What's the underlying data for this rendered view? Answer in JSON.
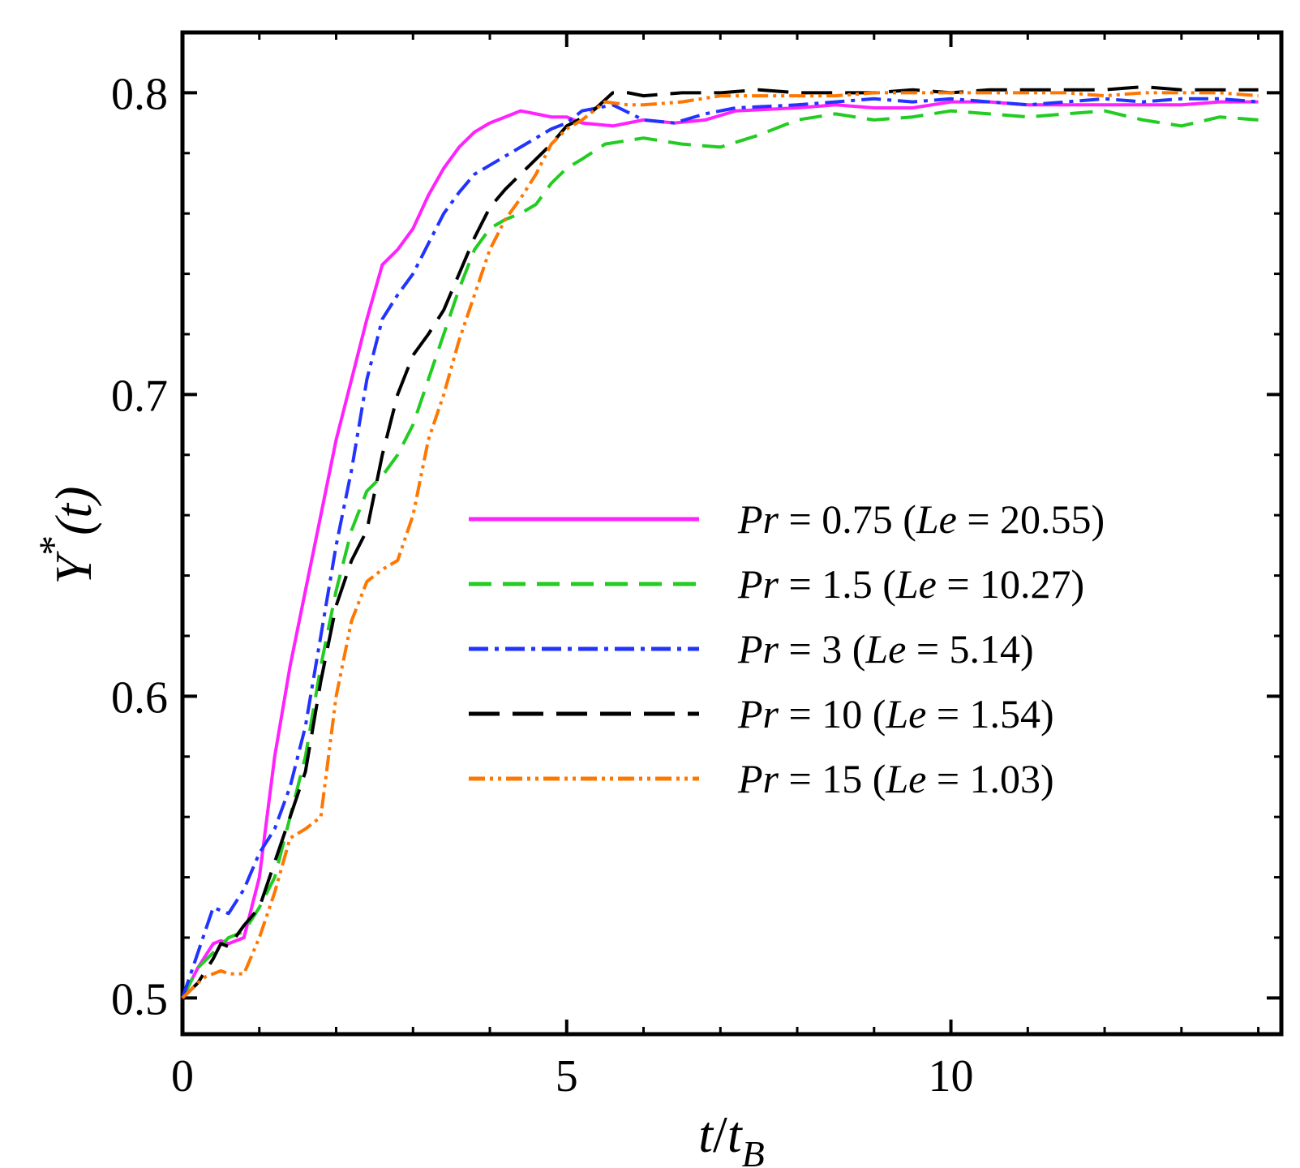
{
  "chart_data": {
    "type": "line",
    "title": "",
    "xlabel": {
      "italic_a": "t",
      "slash": "/",
      "italic_b": "t",
      "sub": "B"
    },
    "ylabel": {
      "italic": "Y",
      "sup": "*",
      "rest": "(t)"
    },
    "xlim": [
      0,
      14.3
    ],
    "ylim": [
      0.488,
      0.82
    ],
    "xticks": [
      0,
      5,
      10
    ],
    "xtick_labels": [
      "0",
      "5",
      "10"
    ],
    "yticks": [
      0.5,
      0.6,
      0.7,
      0.8
    ],
    "ytick_labels": [
      "0.5",
      "0.6",
      "0.7",
      "0.8"
    ],
    "legend_position": "center-right",
    "series": [
      {
        "name": "Pr = 0.75 (Le = 20.55)",
        "label_parts": [
          "Pr",
          " = 0.75 (",
          "Le",
          " = 20.55)"
        ],
        "color": "#ff22ff",
        "dash": "",
        "x": [
          0,
          0.2,
          0.4,
          0.5,
          0.6,
          0.8,
          1.0,
          1.2,
          1.4,
          1.6,
          1.8,
          2.0,
          2.2,
          2.4,
          2.6,
          2.8,
          3.0,
          3.2,
          3.4,
          3.6,
          3.8,
          4.0,
          4.2,
          4.4,
          4.6,
          4.8,
          5.0,
          5.2,
          5.6,
          6.0,
          6.4,
          6.8,
          7.2,
          8.0,
          8.5,
          9.0,
          9.5,
          10.0,
          10.5,
          11.0,
          11.5,
          12.0,
          12.5,
          13.0,
          13.5,
          14.0
        ],
        "y": [
          0.5,
          0.51,
          0.518,
          0.519,
          0.518,
          0.52,
          0.54,
          0.58,
          0.61,
          0.635,
          0.66,
          0.685,
          0.705,
          0.725,
          0.743,
          0.748,
          0.755,
          0.766,
          0.775,
          0.782,
          0.787,
          0.79,
          0.792,
          0.794,
          0.793,
          0.792,
          0.792,
          0.79,
          0.789,
          0.791,
          0.79,
          0.791,
          0.794,
          0.795,
          0.796,
          0.795,
          0.795,
          0.797,
          0.797,
          0.796,
          0.796,
          0.796,
          0.796,
          0.796,
          0.797,
          0.797
        ]
      },
      {
        "name": "Pr = 1.5 (Le = 10.27)",
        "label_parts": [
          "Pr",
          " = 1.5 (",
          "Le",
          " = 10.27)"
        ],
        "color": "#22cc22",
        "dash": "28 14",
        "x": [
          0,
          0.2,
          0.4,
          0.6,
          0.8,
          1.0,
          1.2,
          1.4,
          1.6,
          1.8,
          2.0,
          2.2,
          2.4,
          2.6,
          2.8,
          3.0,
          3.2,
          3.4,
          3.6,
          3.8,
          4.0,
          4.2,
          4.4,
          4.6,
          4.8,
          5.0,
          5.2,
          5.5,
          6.0,
          6.5,
          7.0,
          7.5,
          8.0,
          8.5,
          9.0,
          9.5,
          10.0,
          10.5,
          11.0,
          11.5,
          12.0,
          12.5,
          13.0,
          13.5,
          14.0
        ],
        "y": [
          0.5,
          0.51,
          0.515,
          0.52,
          0.522,
          0.53,
          0.54,
          0.56,
          0.58,
          0.61,
          0.635,
          0.655,
          0.668,
          0.673,
          0.68,
          0.69,
          0.705,
          0.72,
          0.735,
          0.748,
          0.755,
          0.758,
          0.76,
          0.763,
          0.77,
          0.775,
          0.778,
          0.783,
          0.785,
          0.783,
          0.782,
          0.786,
          0.791,
          0.793,
          0.791,
          0.792,
          0.794,
          0.793,
          0.792,
          0.793,
          0.794,
          0.791,
          0.789,
          0.792,
          0.791
        ]
      },
      {
        "name": "Pr = 3 (Le = 5.14)",
        "label_parts": [
          "Pr",
          " = 3 (",
          "Le",
          " = 5.14)"
        ],
        "color": "#2233ff",
        "dash": "24 8 5 8",
        "x": [
          0,
          0.2,
          0.4,
          0.5,
          0.6,
          0.8,
          1.0,
          1.2,
          1.4,
          1.6,
          1.8,
          2.0,
          2.2,
          2.4,
          2.6,
          2.8,
          3.0,
          3.2,
          3.4,
          3.6,
          3.8,
          4.0,
          4.2,
          4.4,
          4.6,
          4.8,
          5.0,
          5.2,
          5.6,
          6.0,
          6.4,
          6.8,
          7.2,
          8.0,
          8.5,
          9.0,
          9.5,
          10.0,
          10.5,
          11.0,
          11.5,
          12.0,
          12.5,
          13.0,
          13.5,
          14.0
        ],
        "y": [
          0.5,
          0.515,
          0.53,
          0.529,
          0.528,
          0.536,
          0.548,
          0.556,
          0.57,
          0.59,
          0.62,
          0.65,
          0.675,
          0.705,
          0.725,
          0.733,
          0.74,
          0.75,
          0.76,
          0.767,
          0.773,
          0.776,
          0.779,
          0.782,
          0.785,
          0.788,
          0.79,
          0.794,
          0.796,
          0.791,
          0.79,
          0.793,
          0.795,
          0.796,
          0.797,
          0.798,
          0.797,
          0.798,
          0.797,
          0.796,
          0.797,
          0.798,
          0.797,
          0.798,
          0.798,
          0.797
        ]
      },
      {
        "name": "Pr = 10 (Le = 1.54)",
        "label_parts": [
          "Pr",
          " = 10 (",
          "Le",
          " = 1.54)"
        ],
        "color": "#000000",
        "dash": "38 16",
        "x": [
          0,
          0.2,
          0.4,
          0.5,
          0.6,
          0.8,
          1.0,
          1.2,
          1.4,
          1.6,
          1.8,
          2.0,
          2.2,
          2.4,
          2.6,
          2.8,
          3.0,
          3.2,
          3.4,
          3.6,
          3.8,
          4.0,
          4.2,
          4.4,
          4.6,
          4.8,
          5.0,
          5.3,
          5.6,
          5.8,
          6.0,
          6.5,
          7.0,
          7.5,
          8.0,
          8.5,
          9.0,
          9.5,
          10.0,
          10.5,
          11.0,
          11.5,
          12.0,
          12.5,
          13.0,
          13.5,
          14.0
        ],
        "y": [
          0.5,
          0.505,
          0.513,
          0.518,
          0.517,
          0.524,
          0.53,
          0.545,
          0.56,
          0.575,
          0.605,
          0.63,
          0.645,
          0.655,
          0.68,
          0.7,
          0.713,
          0.72,
          0.728,
          0.74,
          0.752,
          0.762,
          0.768,
          0.773,
          0.778,
          0.783,
          0.789,
          0.793,
          0.8,
          0.8,
          0.799,
          0.8,
          0.8,
          0.801,
          0.8,
          0.8,
          0.8,
          0.801,
          0.8,
          0.801,
          0.801,
          0.801,
          0.801,
          0.802,
          0.801,
          0.801,
          0.801
        ]
      },
      {
        "name": "Pr = 15 (Le = 1.03)",
        "label_parts": [
          "Pr",
          " = 15 (",
          "Le",
          " = 1.03)"
        ],
        "color": "#ff7700",
        "dash": "20 6 4 6 4 6",
        "x": [
          0,
          0.2,
          0.3,
          0.5,
          0.6,
          0.8,
          1.0,
          1.2,
          1.4,
          1.6,
          1.8,
          2.0,
          2.2,
          2.4,
          2.6,
          2.8,
          3.0,
          3.2,
          3.4,
          3.6,
          3.8,
          4.0,
          4.2,
          4.4,
          4.6,
          4.8,
          5.0,
          5.2,
          5.5,
          5.8,
          6.0,
          6.5,
          7.0,
          7.5,
          8.0,
          8.5,
          9.0,
          9.5,
          10.0,
          10.5,
          11.0,
          11.5,
          12.0,
          12.5,
          13.0,
          13.5,
          14.0
        ],
        "y": [
          0.5,
          0.505,
          0.507,
          0.509,
          0.508,
          0.508,
          0.52,
          0.535,
          0.553,
          0.556,
          0.56,
          0.6,
          0.625,
          0.638,
          0.642,
          0.645,
          0.66,
          0.685,
          0.7,
          0.718,
          0.733,
          0.748,
          0.758,
          0.765,
          0.773,
          0.783,
          0.788,
          0.791,
          0.797,
          0.796,
          0.796,
          0.797,
          0.799,
          0.799,
          0.799,
          0.799,
          0.8,
          0.8,
          0.8,
          0.8,
          0.8,
          0.8,
          0.799,
          0.8,
          0.8,
          0.8,
          0.799
        ]
      }
    ]
  }
}
